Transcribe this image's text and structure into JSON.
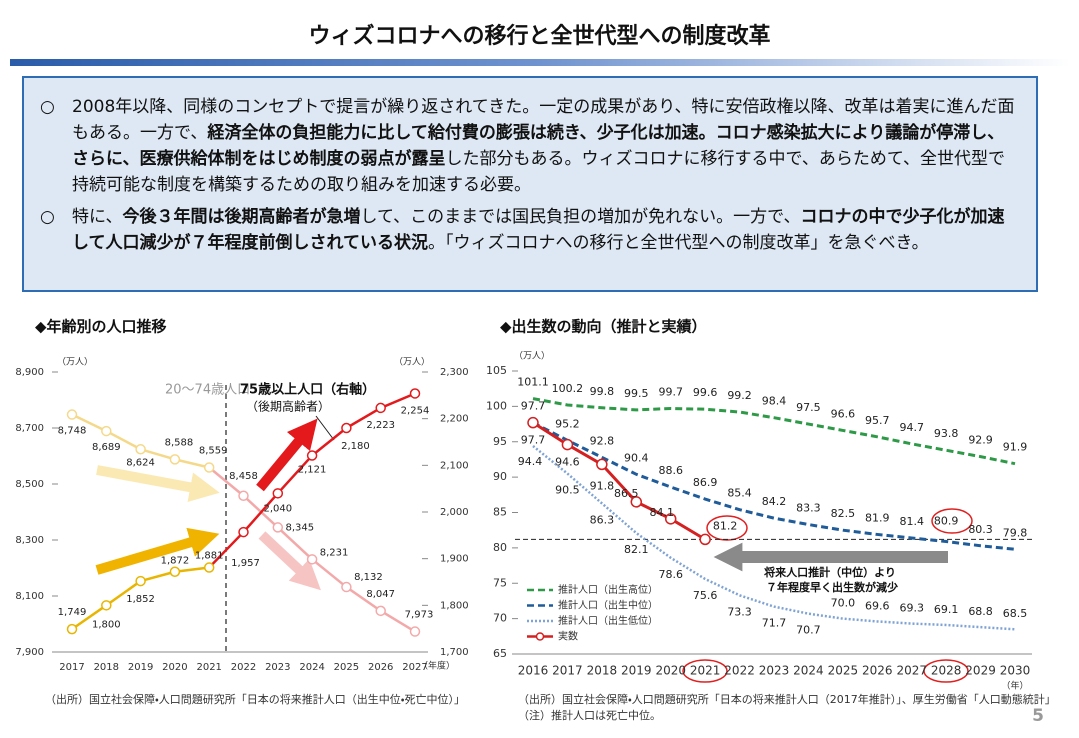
{
  "header": {
    "title": "ウィズコロナへの移行と全世代型への制度改革"
  },
  "summary": {
    "paragraphs": [
      {
        "marker": "○",
        "segments": [
          {
            "text": "2008年以降、同様のコンセプトで提言が繰り返されてきた。一定の成果があり、特に安倍政権以降、改革は着実に進んだ面もある。一方で、",
            "bold": false
          },
          {
            "text": "経済全体の負担能力に比して給付費の膨張は続き、少子化は加速。コロナ感染拡大により議論が停滞し、さらに、医療供給体制をはじめ制度の弱点が露呈",
            "bold": true
          },
          {
            "text": "した部分もある。ウィズコロナに移行する中で、あらためて、全世代型で持続可能な制度を構築するための取り組みを加速する必要。",
            "bold": false
          }
        ]
      },
      {
        "marker": "○",
        "segments": [
          {
            "text": "特に、",
            "bold": false
          },
          {
            "text": "今後３年間は後期高齢者が急増",
            "bold": true
          },
          {
            "text": "して、このままでは国民負担の増加が免れない。一方で、",
            "bold": false
          },
          {
            "text": "コロナの中で少子化が加速して人口減少が７年程度前倒しされている状況",
            "bold": true
          },
          {
            "text": "。「ウィズコロナへの移行と全世代型への制度改革」を急ぐべき。",
            "bold": false
          }
        ]
      }
    ]
  },
  "chart_data": [
    {
      "type": "line",
      "title": "◆年齢別の人口推移",
      "y_unit": "（万人）",
      "y2_unit": "（万人）",
      "x_unit": "（年度）",
      "categories": [
        "2017",
        "2018",
        "2019",
        "2020",
        "2021",
        "2022",
        "2023",
        "2024",
        "2025",
        "2026",
        "2027"
      ],
      "ylim": [
        7900,
        8900
      ],
      "yticks": [
        {
          "value": 7900,
          "label": "7,900"
        },
        {
          "value": 8100,
          "label": "8,100"
        },
        {
          "value": 8300,
          "label": "8,300"
        },
        {
          "value": 8500,
          "label": "8,500"
        },
        {
          "value": 8700,
          "label": "8,700"
        },
        {
          "value": 8900,
          "label": "8,900"
        }
      ],
      "y2lim": [
        1700,
        2300
      ],
      "y2ticks": [
        {
          "value": 1700,
          "label": "1,700"
        },
        {
          "value": 1800,
          "label": "1,800"
        },
        {
          "value": 1900,
          "label": "1,900"
        },
        {
          "value": 2000,
          "label": "2,000"
        },
        {
          "value": 2100,
          "label": "2,100"
        },
        {
          "value": 2200,
          "label": "2,200"
        },
        {
          "value": 2300,
          "label": "2,300"
        }
      ],
      "series": [
        {
          "name": "20～74歳人口",
          "values": [
            8748,
            8689,
            8624,
            8588,
            8559,
            8458,
            8345,
            8231,
            8132,
            8047,
            7973
          ],
          "value_labels": [
            "8,748",
            "8,689",
            "8,624",
            "8,588",
            "8,559",
            "8,458",
            "8,345",
            "8,231",
            "8,132",
            "8,047",
            "7,973"
          ],
          "colors": [
            "#f5d98a",
            "#f5d98a",
            "#f5d98a",
            "#f5d98a",
            "#f5d98a",
            "#f3a9a9",
            "#f3a9a9",
            "#f3a9a9",
            "#f3a9a9",
            "#f3a9a9",
            "#f3a9a9"
          ]
        },
        {
          "name": "75歳以上人口（右軸）",
          "name_note": "（後期高齢者）",
          "axis": "y2",
          "values": [
            1749,
            1800,
            1852,
            1872,
            1881,
            1957,
            2040,
            2121,
            2180,
            2223,
            2254
          ],
          "value_labels": [
            "1,749",
            "1,800",
            "1,852",
            "1,872",
            "1,881",
            "1,957",
            "2,040",
            "2,121",
            "2,180",
            "2,223",
            "2,254"
          ],
          "colors": [
            "#e8b500",
            "#e8b500",
            "#e8b500",
            "#e8b500",
            "#e8b500",
            "#e3191c",
            "#e3191c",
            "#e3191c",
            "#e3191c",
            "#e3191c",
            "#e3191c"
          ]
        }
      ],
      "source": "（出所）国立社会保障・人口問題研究所「日本の将来推計人口（出生中位・死亡中位）」"
    },
    {
      "type": "line",
      "title": "◆出生数の動向（推計と実績）",
      "y_unit": "（万人）",
      "x_unit": "（年）",
      "categories": [
        "2016",
        "2017",
        "2018",
        "2019",
        "2020",
        "2021",
        "2022",
        "2023",
        "2024",
        "2025",
        "2026",
        "2027",
        "2028",
        "2029",
        "2030"
      ],
      "ylim": [
        65,
        105
      ],
      "yticks": [
        65,
        70,
        75,
        80,
        85,
        90,
        95,
        100,
        105
      ],
      "series": [
        {
          "name": "推計人口（出生高位）",
          "color": "#2e9a48",
          "dash": "dashed",
          "values": [
            101.1,
            100.2,
            99.8,
            99.5,
            99.7,
            99.6,
            99.2,
            98.4,
            97.5,
            96.6,
            95.7,
            94.7,
            93.8,
            92.9,
            91.9
          ]
        },
        {
          "name": "推計人口（出生中位）",
          "color": "#1f5c99",
          "dash": "dashed",
          "values": [
            97.7,
            95.2,
            92.8,
            90.4,
            88.6,
            86.9,
            85.4,
            84.2,
            83.3,
            82.5,
            81.9,
            81.4,
            80.9,
            80.3,
            79.8
          ]
        },
        {
          "name": "推計人口（出生低位）",
          "color": "#7fa3d4",
          "dash": "dotted",
          "values": [
            94.4,
            90.5,
            86.3,
            82.1,
            78.6,
            75.6,
            73.3,
            71.7,
            70.7,
            70,
            69.6,
            69.3,
            69.1,
            68.8,
            68.5
          ],
          "value_labels": [
            "94.4",
            "90.5",
            "86.3",
            "82.1",
            "78.6",
            "75.6",
            "73.3",
            "71.7",
            "70.7",
            "70.0",
            "69.6",
            "69.3",
            "69.1",
            "68.8",
            "68.5"
          ]
        },
        {
          "name": "実数",
          "color": "#d42020",
          "dash": "solid",
          "marker": "circle",
          "values": [
            97.7,
            94.6,
            91.8,
            86.5,
            84.1,
            81.2,
            null,
            null,
            null,
            null,
            null,
            null,
            null,
            null,
            null
          ]
        }
      ],
      "annotation": [
        "将来人口推計（中位）より",
        "７年程度早く出生数が減少"
      ],
      "source": "（出所）国立社会保障・人口問題研究所「日本の将来推計人口（2017年推計）」、厚生労働省「人口動態統計」",
      "note": "（注）推計人口は死亡中位。"
    }
  ],
  "page_number": "5"
}
